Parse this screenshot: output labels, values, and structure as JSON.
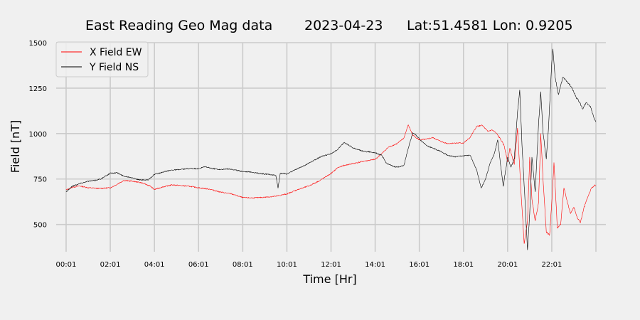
{
  "chart_data": {
    "type": "line",
    "title": {
      "name": "East Reading Geo Mag data",
      "date": "2023-04-23",
      "location": "Lat:51.4581  Lon: 0.9205"
    },
    "xlabel": "Time  [Hr]",
    "ylabel": "Field  [nT]",
    "x_unit": "hours",
    "xlim": [
      -0.45,
      24.45
    ],
    "ylim": [
      350,
      1500
    ],
    "x_ticks": [
      {
        "value": 0,
        "label": "00:01"
      },
      {
        "value": 2,
        "label": "02:01"
      },
      {
        "value": 4,
        "label": "04:01"
      },
      {
        "value": 6,
        "label": "06:01"
      },
      {
        "value": 8,
        "label": "08:01"
      },
      {
        "value": 10,
        "label": "10:01"
      },
      {
        "value": 12,
        "label": "12:01"
      },
      {
        "value": 14,
        "label": "14:01"
      },
      {
        "value": 16,
        "label": "16:01"
      },
      {
        "value": 18,
        "label": "18:01"
      },
      {
        "value": 20,
        "label": "20:01"
      },
      {
        "value": 22,
        "label": "22:01"
      }
    ],
    "x_grid_extra": [
      24
    ],
    "y_ticks": [
      500,
      750,
      1000,
      1250,
      1500
    ],
    "grid": true,
    "legend_position": "top-left",
    "series": [
      {
        "name": "X Field EW",
        "color": "#ff0000",
        "points": [
          [
            0,
            690
          ],
          [
            0.3,
            705
          ],
          [
            0.6,
            712
          ],
          [
            1,
            702
          ],
          [
            1.5,
            698
          ],
          [
            2,
            702
          ],
          [
            2.3,
            720
          ],
          [
            2.6,
            742
          ],
          [
            3,
            738
          ],
          [
            3.4,
            730
          ],
          [
            3.8,
            712
          ],
          [
            4,
            692
          ],
          [
            4.3,
            704
          ],
          [
            4.8,
            718
          ],
          [
            5.2,
            714
          ],
          [
            5.6,
            710
          ],
          [
            6,
            702
          ],
          [
            6.5,
            694
          ],
          [
            7,
            678
          ],
          [
            7.5,
            668
          ],
          [
            8,
            648
          ],
          [
            8.5,
            646
          ],
          [
            9,
            650
          ],
          [
            9.5,
            655
          ],
          [
            10,
            668
          ],
          [
            10.5,
            692
          ],
          [
            11,
            712
          ],
          [
            11.5,
            742
          ],
          [
            12,
            780
          ],
          [
            12.3,
            812
          ],
          [
            12.6,
            825
          ],
          [
            13,
            835
          ],
          [
            13.5,
            848
          ],
          [
            14,
            858
          ],
          [
            14.3,
            890
          ],
          [
            14.6,
            925
          ],
          [
            15,
            945
          ],
          [
            15.3,
            975
          ],
          [
            15.5,
            1048
          ],
          [
            15.7,
            992
          ],
          [
            16,
            965
          ],
          [
            16.3,
            968
          ],
          [
            16.6,
            978
          ],
          [
            17,
            955
          ],
          [
            17.3,
            945
          ],
          [
            17.6,
            948
          ],
          [
            18,
            948
          ],
          [
            18.3,
            978
          ],
          [
            18.6,
            1040
          ],
          [
            18.85,
            1045
          ],
          [
            19.1,
            1012
          ],
          [
            19.3,
            1020
          ],
          [
            19.5,
            1000
          ],
          [
            19.7,
            965
          ],
          [
            19.85,
            930
          ],
          [
            20,
            845
          ],
          [
            20.1,
            920
          ],
          [
            20.2,
            875
          ],
          [
            20.3,
            830
          ],
          [
            20.45,
            1030
          ],
          [
            20.6,
            690
          ],
          [
            20.75,
            395
          ],
          [
            20.9,
            520
          ],
          [
            21,
            870
          ],
          [
            21.1,
            640
          ],
          [
            21.25,
            520
          ],
          [
            21.4,
            620
          ],
          [
            21.5,
            1000
          ],
          [
            21.6,
            760
          ],
          [
            21.75,
            460
          ],
          [
            21.9,
            440
          ],
          [
            22,
            620
          ],
          [
            22.1,
            840
          ],
          [
            22.25,
            480
          ],
          [
            22.4,
            500
          ],
          [
            22.55,
            700
          ],
          [
            22.7,
            625
          ],
          [
            22.85,
            560
          ],
          [
            23,
            595
          ],
          [
            23.15,
            540
          ],
          [
            23.3,
            510
          ],
          [
            23.45,
            590
          ],
          [
            23.6,
            640
          ],
          [
            23.8,
            700
          ],
          [
            23.95,
            718
          ],
          [
            24,
            712
          ]
        ]
      },
      {
        "name": "Y Field NS",
        "color": "#000000",
        "points": [
          [
            0,
            680
          ],
          [
            0.3,
            712
          ],
          [
            0.7,
            728
          ],
          [
            1,
            738
          ],
          [
            1.3,
            742
          ],
          [
            1.6,
            752
          ],
          [
            2,
            782
          ],
          [
            2.3,
            785
          ],
          [
            2.6,
            766
          ],
          [
            3,
            758
          ],
          [
            3.3,
            745
          ],
          [
            3.7,
            744
          ],
          [
            4,
            775
          ],
          [
            4.4,
            788
          ],
          [
            4.8,
            800
          ],
          [
            5.2,
            802
          ],
          [
            5.6,
            808
          ],
          [
            6,
            806
          ],
          [
            6.3,
            818
          ],
          [
            6.6,
            808
          ],
          [
            7,
            802
          ],
          [
            7.4,
            806
          ],
          [
            7.8,
            796
          ],
          [
            8,
            792
          ],
          [
            8.4,
            788
          ],
          [
            8.8,
            780
          ],
          [
            9.2,
            775
          ],
          [
            9.5,
            770
          ],
          [
            9.6,
            700
          ],
          [
            9.7,
            782
          ],
          [
            10,
            778
          ],
          [
            10.2,
            790
          ],
          [
            10.5,
            808
          ],
          [
            10.8,
            825
          ],
          [
            11,
            838
          ],
          [
            11.3,
            858
          ],
          [
            11.6,
            876
          ],
          [
            12,
            888
          ],
          [
            12.3,
            912
          ],
          [
            12.6,
            952
          ],
          [
            13,
            920
          ],
          [
            13.5,
            902
          ],
          [
            14,
            895
          ],
          [
            14.3,
            880
          ],
          [
            14.5,
            838
          ],
          [
            14.8,
            820
          ],
          [
            15,
            815
          ],
          [
            15.3,
            825
          ],
          [
            15.5,
            920
          ],
          [
            15.7,
            1005
          ],
          [
            15.9,
            985
          ],
          [
            16.1,
            958
          ],
          [
            16.4,
            930
          ],
          [
            16.7,
            915
          ],
          [
            17,
            900
          ],
          [
            17.3,
            880
          ],
          [
            17.6,
            872
          ],
          [
            18,
            878
          ],
          [
            18.3,
            880
          ],
          [
            18.6,
            800
          ],
          [
            18.8,
            700
          ],
          [
            19,
            750
          ],
          [
            19.2,
            835
          ],
          [
            19.4,
            890
          ],
          [
            19.55,
            965
          ],
          [
            19.7,
            810
          ],
          [
            19.8,
            710
          ],
          [
            20,
            870
          ],
          [
            20.15,
            815
          ],
          [
            20.3,
            860
          ],
          [
            20.45,
            1120
          ],
          [
            20.55,
            1240
          ],
          [
            20.65,
            940
          ],
          [
            20.8,
            600
          ],
          [
            20.9,
            360
          ],
          [
            21,
            560
          ],
          [
            21.1,
            870
          ],
          [
            21.25,
            680
          ],
          [
            21.4,
            1050
          ],
          [
            21.5,
            1230
          ],
          [
            21.6,
            1010
          ],
          [
            21.75,
            860
          ],
          [
            21.85,
            1030
          ],
          [
            22,
            1390
          ],
          [
            22.05,
            1465
          ],
          [
            22.15,
            1310
          ],
          [
            22.3,
            1215
          ],
          [
            22.5,
            1310
          ],
          [
            22.7,
            1285
          ],
          [
            22.9,
            1255
          ],
          [
            23.1,
            1200
          ],
          [
            23.25,
            1175
          ],
          [
            23.4,
            1135
          ],
          [
            23.55,
            1170
          ],
          [
            23.75,
            1150
          ],
          [
            23.9,
            1090
          ],
          [
            24,
            1065
          ]
        ]
      }
    ]
  }
}
